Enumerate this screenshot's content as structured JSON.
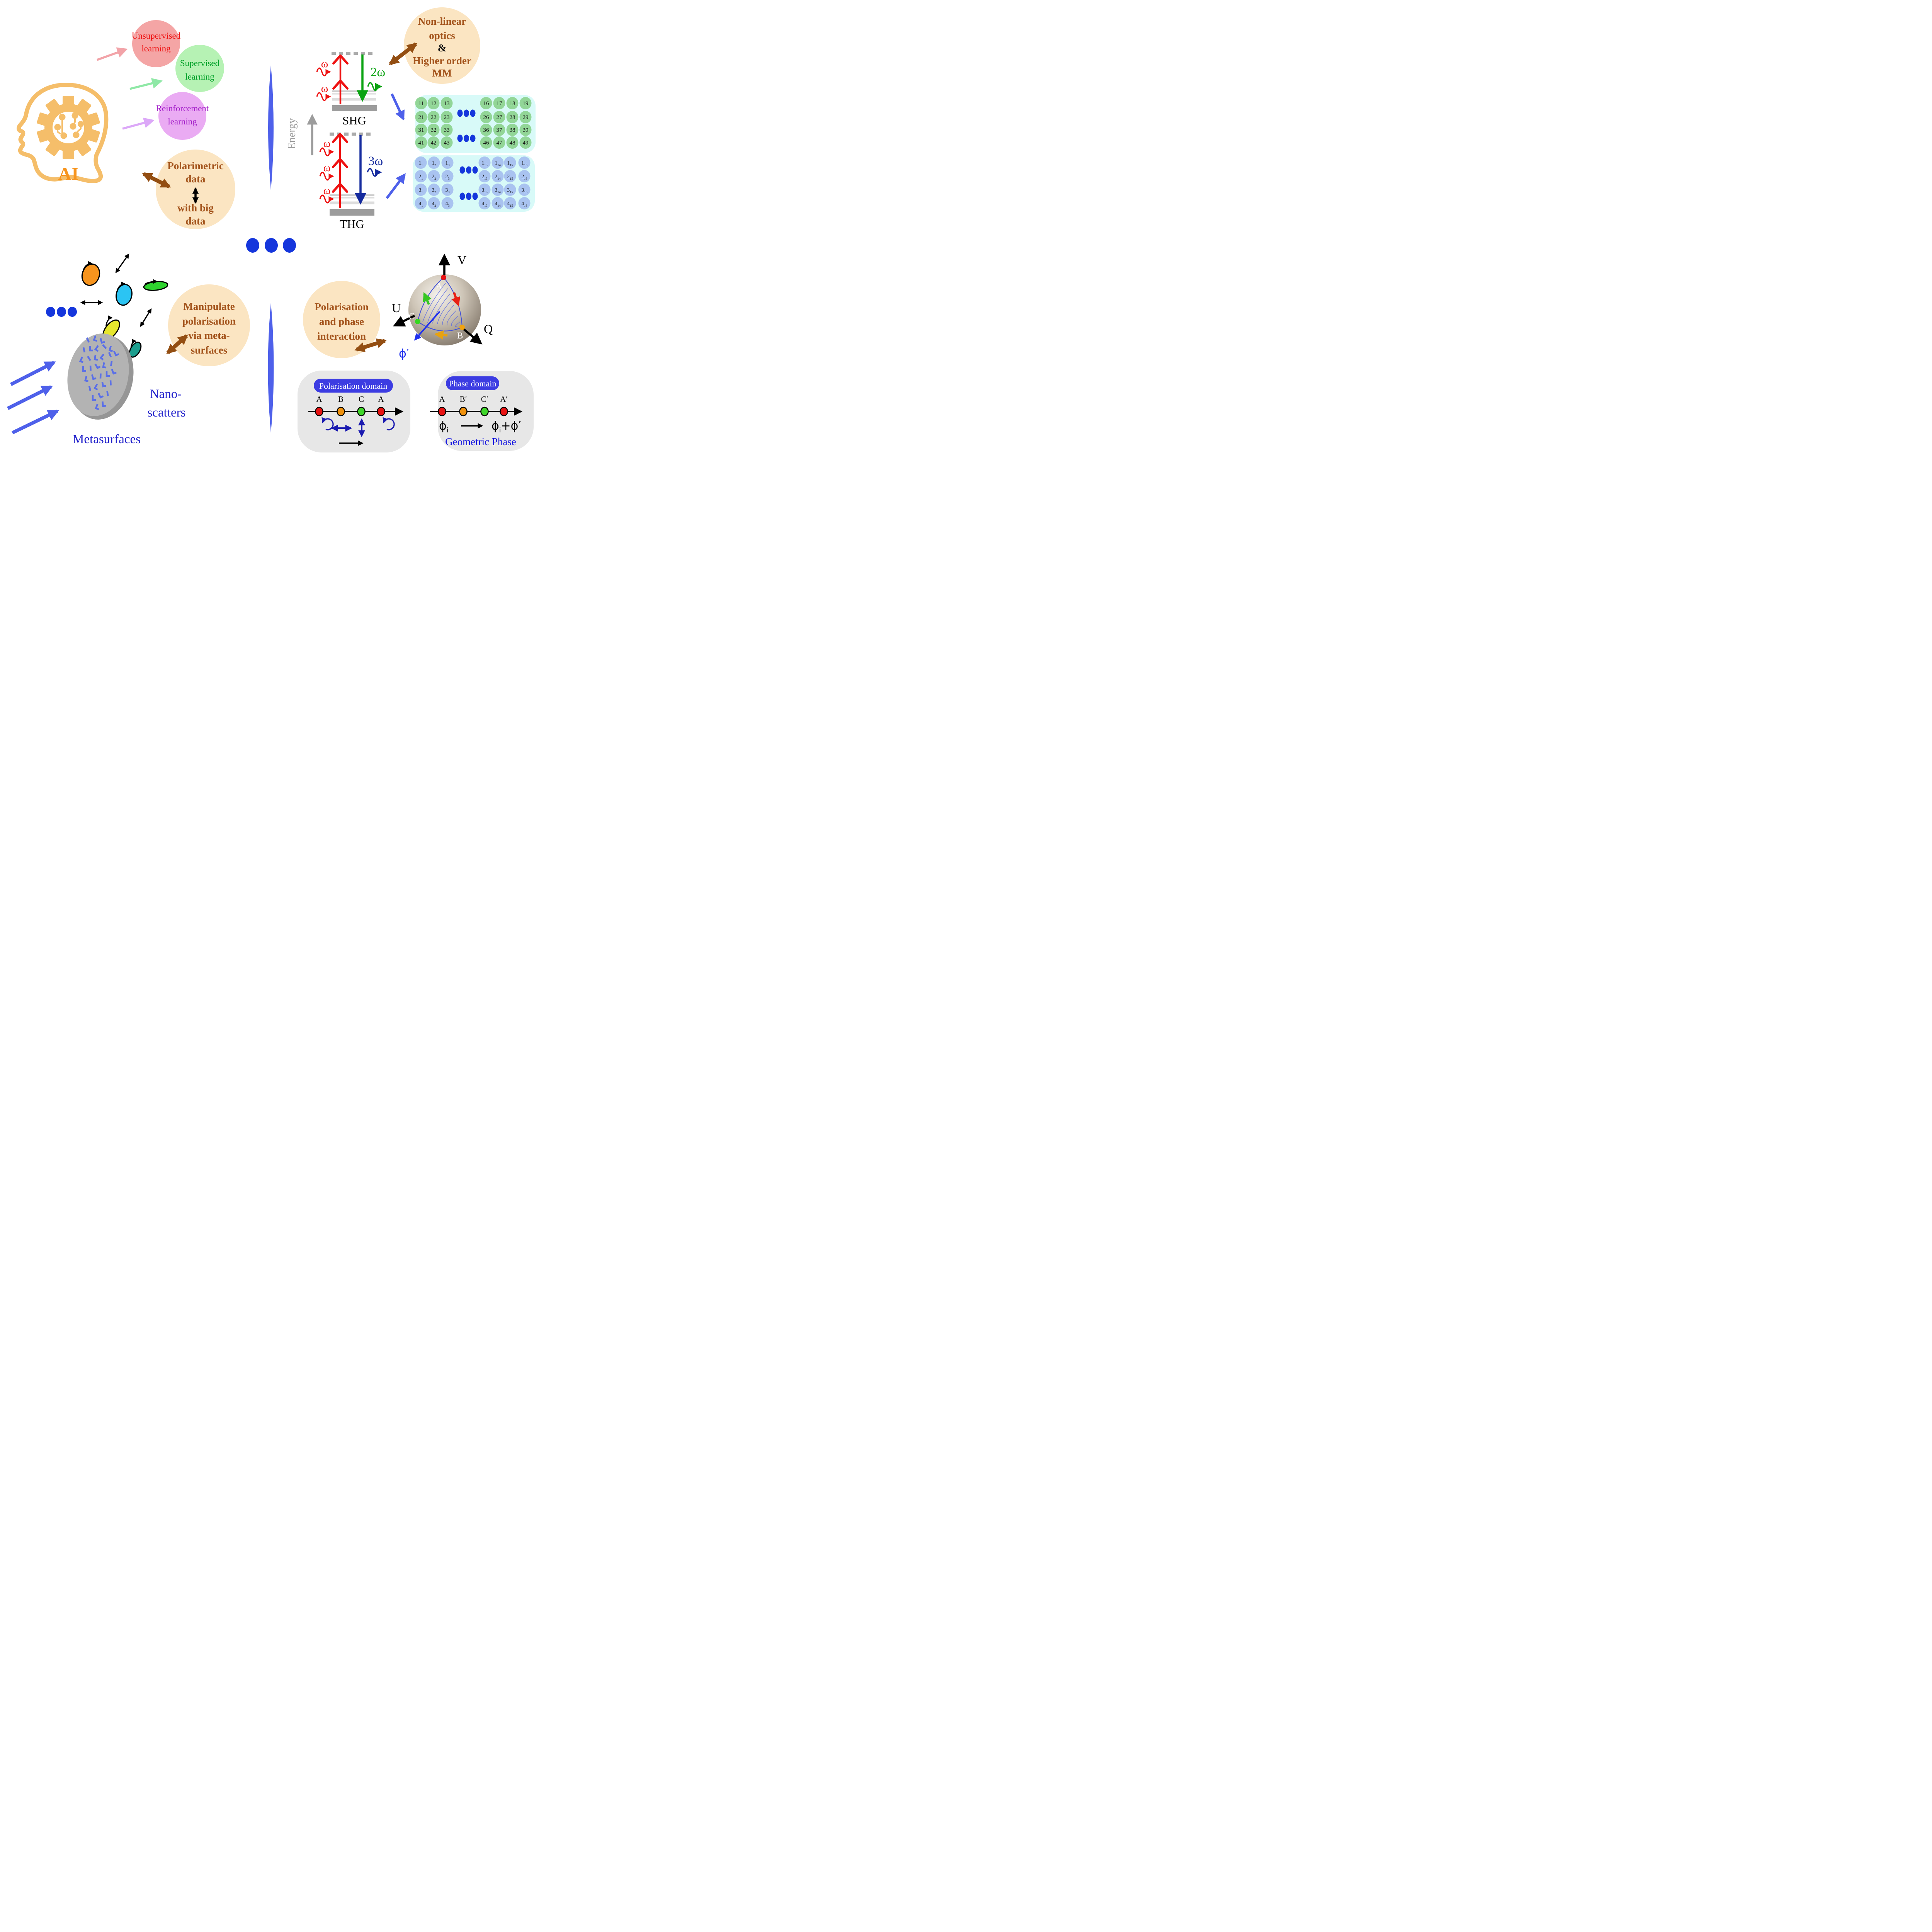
{
  "ai": {
    "label": "AI",
    "unsupervised": [
      "Unsupervised",
      "learning"
    ],
    "supervised": [
      "Supervised",
      "learning"
    ],
    "reinforcement": [
      "Reinforcement",
      "learning"
    ],
    "polarimetric": [
      "Polarimetric",
      "data",
      "with big",
      "data"
    ]
  },
  "nonlinear": {
    "bubble": [
      "Non-linear",
      "optics",
      "&",
      "Higher order",
      "MM"
    ],
    "energy_axis": "Energy",
    "shg_label": "SHG",
    "thg_label": "THG",
    "omega": "ω",
    "two_omega": "2ω",
    "three_omega": "3ω",
    "green_matrix": [
      [
        "11",
        "12",
        "13",
        "16",
        "17",
        "18",
        "19"
      ],
      [
        "21",
        "22",
        "23",
        "26",
        "27",
        "28",
        "29"
      ],
      [
        "31",
        "32",
        "33",
        "36",
        "37",
        "38",
        "39"
      ],
      [
        "41",
        "42",
        "43",
        "46",
        "47",
        "48",
        "49"
      ]
    ],
    "blue_matrix": [
      [
        [
          "1",
          "1"
        ],
        [
          "1",
          "2"
        ],
        [
          "1",
          "3"
        ],
        [
          "1",
          "13"
        ],
        [
          "1",
          "14"
        ],
        [
          "1",
          "15"
        ],
        [
          "1",
          "16"
        ]
      ],
      [
        [
          "2",
          "1"
        ],
        [
          "2",
          "2"
        ],
        [
          "2",
          "3"
        ],
        [
          "2",
          "13"
        ],
        [
          "2",
          "14"
        ],
        [
          "2",
          "15"
        ],
        [
          "2",
          "16"
        ]
      ],
      [
        [
          "3",
          "1"
        ],
        [
          "3",
          "2"
        ],
        [
          "3",
          "3"
        ],
        [
          "3",
          "13"
        ],
        [
          "3",
          "14"
        ],
        [
          "3",
          "15"
        ],
        [
          "3",
          "16"
        ]
      ],
      [
        [
          "4",
          "1"
        ],
        [
          "4",
          "2"
        ],
        [
          "4",
          "3"
        ],
        [
          "4",
          "13"
        ],
        [
          "4",
          "14"
        ],
        [
          "4",
          "15"
        ],
        [
          "4",
          "16"
        ]
      ]
    ]
  },
  "metasurface": {
    "bubble": [
      "Manipulate",
      "polarisation",
      "via meta-",
      "surfaces"
    ],
    "nano_label": [
      "Nano-",
      "scatters"
    ],
    "metasurfaces_label": "Metasurfaces"
  },
  "polarisation": {
    "bubble": [
      "Polarisation",
      "and phase",
      "interaction"
    ],
    "axes": {
      "v": "V",
      "u": "U",
      "q": "Q",
      "phi": "ϕ′"
    },
    "points": {
      "a": "A",
      "b": "B",
      "c": "C"
    },
    "pol_domain": {
      "title": "Polarisation domain",
      "points": [
        "A",
        "B",
        "C",
        "A"
      ]
    },
    "phase_domain": {
      "title": "Phase domain",
      "points": [
        "A",
        "B′",
        "C′",
        "A′"
      ],
      "phi_base": "ϕ",
      "phi_sub": "i",
      "phi_plus": "+ϕ′",
      "geometric_label": "Geometric Phase"
    }
  },
  "colors": {
    "accent_brown": "#A3531B",
    "arrow_brown": "#934E12",
    "peach": "#FBE5C2",
    "red_text": "#EE1111",
    "green_text": "#00A028",
    "purple_text": "#A21CC8",
    "royal_blue": "#1536DC",
    "medium_blue": "#4E60EA",
    "diagram_green": "#0AA312",
    "diagram_navy": "#152B9E",
    "point_colors": [
      "#E81313",
      "#F0920E",
      "#3FD62A",
      "#E81313"
    ]
  }
}
